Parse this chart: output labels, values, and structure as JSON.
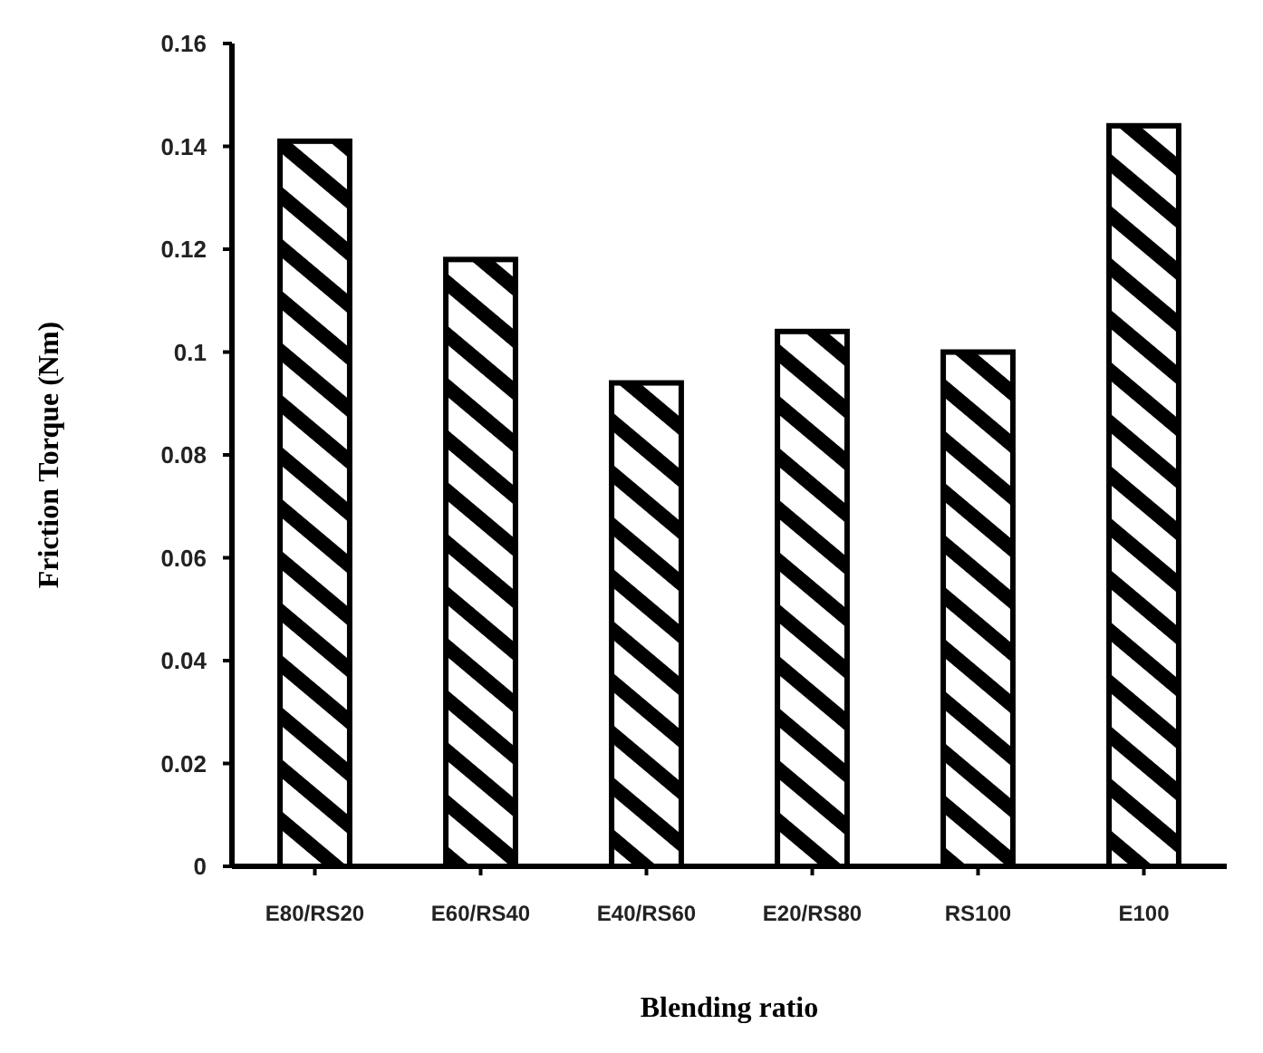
{
  "chart_data": {
    "type": "bar",
    "xlabel": "Blending ratio",
    "ylabel": "Friction Torque (Nm)",
    "categories": [
      "E80/RS20",
      "E60/RS40",
      "E40/RS60",
      "E20/RS80",
      "RS100",
      "E100"
    ],
    "values": [
      0.141,
      0.118,
      0.094,
      0.104,
      0.1,
      0.144
    ],
    "color": "#000000",
    "ylim": [
      0,
      0.16
    ],
    "yticks": [
      0,
      0.02,
      0.04,
      0.06,
      0.08,
      0.1,
      0.12,
      0.14,
      0.16
    ],
    "grid": false
  }
}
